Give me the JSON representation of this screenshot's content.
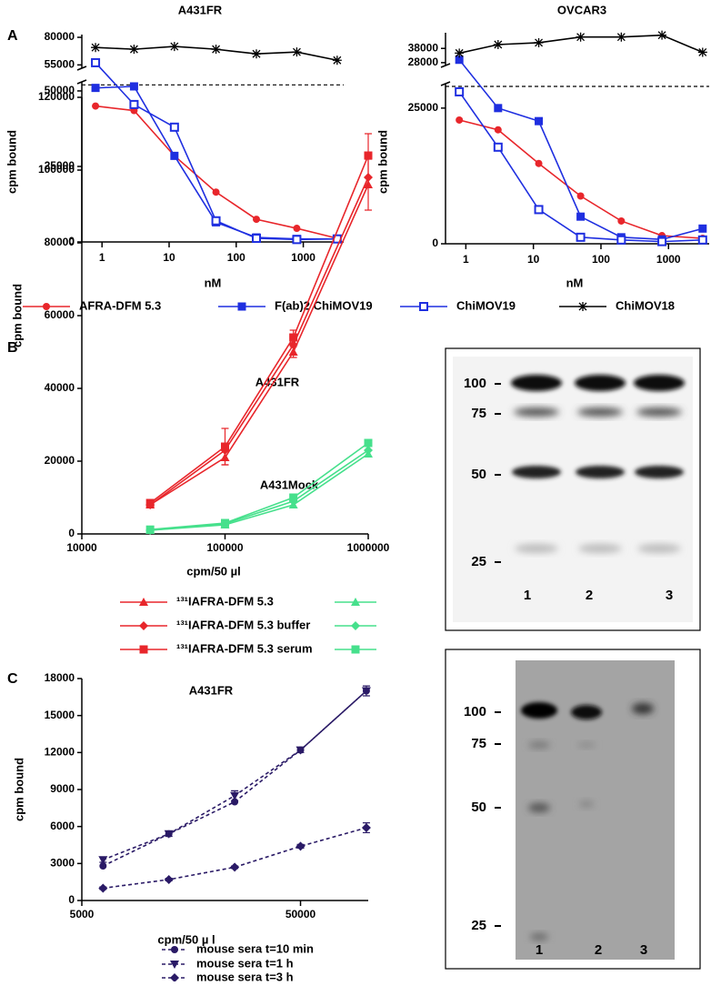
{
  "panel_labels": [
    "A",
    "B",
    "C"
  ],
  "chart_data": [
    {
      "type": "line",
      "title": "A431FR",
      "x_label": "nM",
      "y_label": "cpm bound",
      "x_scale": "log",
      "x": [
        0.8,
        3,
        12,
        50,
        200,
        800,
        3200
      ],
      "xlim": [
        0.5,
        4000
      ],
      "xticks": [
        1,
        10,
        100,
        1000
      ],
      "ylim": [
        0,
        53000
      ],
      "yticks": [
        0,
        25000,
        50000
      ],
      "y2lim": [
        52000,
        82500
      ],
      "y2ticks": [
        55000,
        80000
      ],
      "reference_line": 52000,
      "series": [
        {
          "name": "AFRA-DFM 5.3",
          "color": "#e8262b",
          "marker": "circle",
          "values": [
            45000,
            43500,
            28500,
            16500,
            7500,
            4500,
            1200
          ]
        },
        {
          "name": "F(ab)2 ChiMOV19",
          "color": "#1f2fe0",
          "marker": "square",
          "values": [
            51000,
            51500,
            28500,
            6500,
            1500,
            1000,
            1000
          ]
        },
        {
          "color": "#1f2fe0",
          "marker": "square-open",
          "values": [
            57000,
            45500,
            38000,
            7000,
            1200,
            800,
            1000
          ]
        },
        {
          "color": "#000000",
          "marker": "star",
          "axis": "y2",
          "values": [
            70800,
            69200,
            71700,
            69200,
            65000,
            66700,
            59200
          ]
        }
      ]
    },
    {
      "type": "line",
      "title": "OVCAR3",
      "x_label": "nM",
      "y_label": "cpm bound",
      "x_scale": "log",
      "x": [
        0.8,
        3,
        12,
        50,
        200,
        800,
        3200
      ],
      "xlim": [
        0.5,
        4000
      ],
      "xticks": [
        1,
        10,
        100,
        1000
      ],
      "ylim": [
        0,
        29500
      ],
      "yticks": [
        0,
        25000
      ],
      "y2lim": [
        26000,
        49000
      ],
      "y2ticks": [
        28000,
        38000
      ],
      "reference_line": 29000,
      "series": [
        {
          "color": "#e8262b",
          "marker": "circle",
          "values": [
            22800,
            21000,
            14800,
            8800,
            4200,
            1500,
            1000
          ]
        },
        {
          "color": "#1f2fe0",
          "marker": "square",
          "values": [
            30000,
            25000,
            22600,
            5000,
            1200,
            800,
            2800
          ]
        },
        {
          "name": "ChiMOV19",
          "color": "#1f2fe0",
          "marker": "square-open",
          "values": [
            28000,
            17800,
            6300,
            1200,
            700,
            400,
            700
          ]
        },
        {
          "name": "ChiMOV18",
          "color": "#000000",
          "marker": "star",
          "axis": "y2",
          "values": [
            34700,
            40700,
            42000,
            46000,
            46000,
            47300,
            35300
          ]
        }
      ]
    },
    {
      "type": "line",
      "x_label": "cpm/50 µl",
      "y_label": "cpm bound",
      "x_scale": "log",
      "x": [
        30000,
        100000,
        300000,
        1000000
      ],
      "xlim": [
        10000,
        1000000
      ],
      "xticks": [
        10000,
        100000,
        1000000
      ],
      "ylim": [
        0,
        120000
      ],
      "yticks": [
        0,
        20000,
        40000,
        60000,
        80000,
        100000,
        120000
      ],
      "annotations": [
        "A431FR",
        "A431Mock"
      ],
      "series": [
        {
          "name": "¹³¹IAFRA-DFM 5.3",
          "color": "#e8262b",
          "marker": "triangle",
          "values": [
            8000,
            21000,
            50000,
            96000
          ],
          "errors": [
            500,
            2000,
            1500,
            7000
          ]
        },
        {
          "name": "¹³¹IAFRA-DFM 5.3 buffer",
          "color": "#e8262b",
          "marker": "diamond",
          "values": [
            8000,
            23000,
            52000,
            98000
          ]
        },
        {
          "name": "¹³¹IAFRA-DFM 5.3 serum",
          "color": "#e8262b",
          "marker": "square",
          "values": [
            8500,
            24000,
            54000,
            104000
          ],
          "errors": [
            600,
            5000,
            2000,
            6000
          ]
        },
        {
          "color": "#46e08c",
          "marker": "triangle",
          "values": [
            1000,
            2500,
            8000,
            22000
          ]
        },
        {
          "color": "#46e08c",
          "marker": "diamond",
          "values": [
            1000,
            2800,
            9000,
            23000
          ]
        },
        {
          "color": "#46e08c",
          "marker": "square",
          "values": [
            1200,
            3000,
            10000,
            25000
          ]
        }
      ]
    },
    {
      "type": "line",
      "title": "A431FR",
      "x_label": "cpm/50 µ l",
      "y_label": "cpm bound",
      "x_scale": "log",
      "line_style": "dashed",
      "x": [
        6250,
        12500,
        25000,
        50000,
        100000
      ],
      "xlim": [
        5000,
        102000
      ],
      "xticks": [
        5000,
        50000
      ],
      "ylim": [
        0,
        18000
      ],
      "yticks": [
        0,
        3000,
        6000,
        9000,
        12000,
        15000,
        18000
      ],
      "series": [
        {
          "name": "mouse sera t=10 min",
          "color": "#2a1a66",
          "marker": "circle",
          "values": [
            2800,
            5400,
            8000,
            12200,
            17000
          ]
        },
        {
          "name": "mouse sera t=1 h",
          "color": "#2a1a66",
          "marker": "triangle-down",
          "values": [
            3300,
            5400,
            8500,
            12200,
            17000
          ],
          "errors": [
            200,
            200,
            400,
            200,
            400
          ]
        },
        {
          "name": "mouse sera t=3 h",
          "color": "#2a1a66",
          "marker": "diamond",
          "values": [
            1000,
            1700,
            2700,
            4400,
            5900
          ],
          "errors": [
            100,
            100,
            100,
            150,
            400
          ]
        }
      ]
    }
  ],
  "gels": [
    {
      "markers": [
        100,
        75,
        50,
        25
      ],
      "lanes": [
        1,
        2,
        3
      ]
    },
    {
      "markers": [
        100,
        75,
        50,
        25
      ],
      "lanes": [
        1,
        2,
        3
      ]
    }
  ]
}
